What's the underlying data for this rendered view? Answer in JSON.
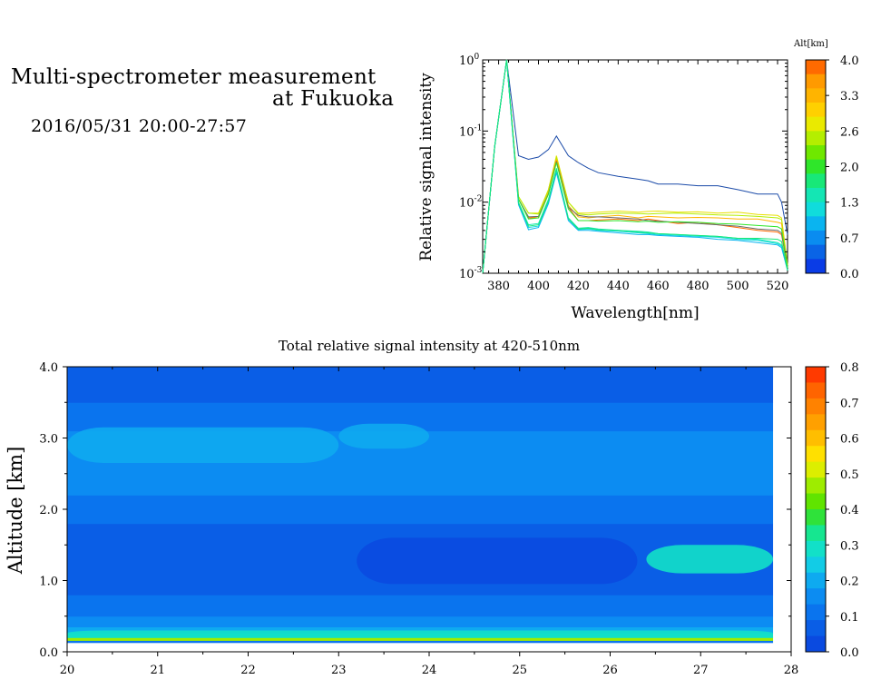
{
  "title": {
    "line1": "Multi-spectrometer measurement",
    "line2": "at Fukuoka",
    "datetime": "2016/05/31 20:00-27:57"
  },
  "chart_data": [
    {
      "type": "line",
      "xlabel": "Wavelength[nm]",
      "ylabel": "Relative signal intensity",
      "yscale": "log",
      "xlim": [
        372,
        525
      ],
      "ylim": [
        0.001,
        1
      ],
      "x_ticks": [
        380,
        400,
        420,
        440,
        460,
        480,
        500,
        520
      ],
      "y_ticks": [
        {
          "value": 0.001,
          "base": "10",
          "exp": "-3"
        },
        {
          "value": 0.01,
          "base": "10",
          "exp": "-2"
        },
        {
          "value": 0.1,
          "base": "10",
          "exp": "-1"
        },
        {
          "value": 1,
          "base": "10",
          "exp": "0"
        }
      ],
      "x": [
        372,
        378,
        384,
        390,
        395,
        400,
        405,
        409,
        415,
        420,
        425,
        430,
        440,
        450,
        455,
        460,
        470,
        480,
        490,
        500,
        510,
        520,
        522,
        525
      ],
      "colorbar": {
        "label": "Alt[km]",
        "ticks": [
          "4.0",
          "3.3",
          "2.6",
          "2.0",
          "1.3",
          "0.7",
          "0.0"
        ],
        "colors": [
          "#ff6a00",
          "#ff9a00",
          "#ffb400",
          "#ffd000",
          "#eaea00",
          "#b4ee00",
          "#6fe800",
          "#2fe62a",
          "#18e878",
          "#14e6b4",
          "#10dcdc",
          "#0ab4f0",
          "#0a8cf0",
          "#0a64e6",
          "#0a3ce6"
        ]
      },
      "series": [
        {
          "color": "#1a4aa8",
          "values": [
            0.001,
            0.06,
            1.0,
            0.045,
            0.04,
            0.043,
            0.055,
            0.085,
            0.045,
            0.036,
            0.03,
            0.026,
            0.023,
            0.021,
            0.02,
            0.018,
            0.018,
            0.017,
            0.017,
            0.015,
            0.013,
            0.013,
            0.01,
            0.0035
          ]
        },
        {
          "color": "#e8e000",
          "values": [
            0.001,
            0.06,
            1.0,
            0.012,
            0.007,
            0.007,
            0.015,
            0.045,
            0.01,
            0.007,
            0.007,
            0.0072,
            0.0075,
            0.0072,
            0.0074,
            0.0075,
            0.0072,
            0.0073,
            0.007,
            0.0072,
            0.0067,
            0.0065,
            0.006,
            0.0013
          ]
        },
        {
          "color": "#b4ee00",
          "values": [
            0.001,
            0.06,
            1.0,
            0.012,
            0.007,
            0.0068,
            0.015,
            0.042,
            0.01,
            0.0068,
            0.0066,
            0.0068,
            0.007,
            0.0069,
            0.0068,
            0.0069,
            0.007,
            0.0068,
            0.0066,
            0.0065,
            0.0063,
            0.006,
            0.0057,
            0.0013
          ]
        },
        {
          "color": "#ffb400",
          "values": [
            0.001,
            0.06,
            1.0,
            0.011,
            0.006,
            0.0063,
            0.014,
            0.04,
            0.009,
            0.0062,
            0.006,
            0.0062,
            0.0065,
            0.006,
            0.0063,
            0.0062,
            0.006,
            0.0061,
            0.006,
            0.0058,
            0.0058,
            0.0052,
            0.005,
            0.0012
          ]
        },
        {
          "color": "#ff6a00",
          "values": [
            0.001,
            0.06,
            1.0,
            0.011,
            0.006,
            0.006,
            0.013,
            0.038,
            0.0085,
            0.0055,
            0.0055,
            0.0056,
            0.0058,
            0.0055,
            0.0058,
            0.0055,
            0.005,
            0.0052,
            0.0048,
            0.0044,
            0.004,
            0.0038,
            0.0035,
            0.0012
          ]
        },
        {
          "color": "#6a6a6a",
          "values": [
            0.001,
            0.06,
            1.0,
            0.011,
            0.0062,
            0.0063,
            0.013,
            0.037,
            0.0085,
            0.0065,
            0.0062,
            0.0062,
            0.006,
            0.0058,
            0.0055,
            0.0054,
            0.0052,
            0.005,
            0.0048,
            0.0046,
            0.0042,
            0.004,
            0.0037,
            0.0012
          ]
        },
        {
          "color": "#2fe62a",
          "values": [
            0.001,
            0.06,
            1.0,
            0.011,
            0.0058,
            0.006,
            0.013,
            0.036,
            0.008,
            0.0055,
            0.0055,
            0.0054,
            0.0055,
            0.0053,
            0.0054,
            0.0052,
            0.0053,
            0.0052,
            0.005,
            0.0049,
            0.0047,
            0.0045,
            0.0042,
            0.0012
          ]
        },
        {
          "color": "#14e6b4",
          "values": [
            0.001,
            0.06,
            1.0,
            0.01,
            0.0048,
            0.005,
            0.011,
            0.03,
            0.006,
            0.0043,
            0.0044,
            0.0042,
            0.004,
            0.0039,
            0.0038,
            0.0036,
            0.0035,
            0.0034,
            0.0033,
            0.0031,
            0.003,
            0.0027,
            0.0025,
            0.0011
          ]
        },
        {
          "color": "#10dcdc",
          "values": [
            0.001,
            0.06,
            1.0,
            0.0095,
            0.0044,
            0.0046,
            0.01,
            0.028,
            0.0058,
            0.0041,
            0.0042,
            0.004,
            0.0039,
            0.0037,
            0.0036,
            0.0035,
            0.0034,
            0.0033,
            0.0032,
            0.003,
            0.0029,
            0.0026,
            0.0024,
            0.0011
          ]
        },
        {
          "color": "#0ab4f0",
          "values": [
            0.001,
            0.06,
            1.0,
            0.0092,
            0.0041,
            0.0044,
            0.0095,
            0.026,
            0.0055,
            0.004,
            0.004,
            0.0039,
            0.0037,
            0.0035,
            0.0035,
            0.0034,
            0.0033,
            0.0032,
            0.003,
            0.0029,
            0.0027,
            0.0025,
            0.0023,
            0.0011
          ]
        },
        {
          "color": "#18e878",
          "values": [
            0.001,
            0.06,
            1.0,
            0.0098,
            0.0046,
            0.0048,
            0.0105,
            0.029,
            0.0059,
            0.0042,
            0.0043,
            0.0041,
            0.004,
            0.0038,
            0.0037,
            0.0036,
            0.0035,
            0.0034,
            0.0033,
            0.0031,
            0.0031,
            0.003,
            0.0028,
            0.0011
          ]
        }
      ]
    },
    {
      "type": "heatmap",
      "title": "Total relative signal intensity at 420-510nm",
      "ylabel": "Altitude [km]",
      "xlim": [
        20,
        28
      ],
      "ylim": [
        0,
        4
      ],
      "x_ticks": [
        "20",
        "21",
        "22",
        "23",
        "24",
        "25",
        "26",
        "27",
        "28"
      ],
      "y_ticks": [
        "0.0",
        "1.0",
        "2.0",
        "3.0",
        "4.0"
      ],
      "data_x_range": [
        20,
        27.8
      ],
      "data_y_range": [
        0.13,
        4.0
      ],
      "colorbar": {
        "ticks": [
          "0.8",
          "0.7",
          "0.6",
          "0.5",
          "0.4",
          "0.3",
          "0.2",
          "0.1",
          "0.0"
        ],
        "range": [
          0,
          0.8
        ],
        "colors": [
          "#ff3a00",
          "#ff6400",
          "#ff8200",
          "#ffa000",
          "#ffbe00",
          "#ffe000",
          "#dcee00",
          "#9eec00",
          "#60e400",
          "#2fe23a",
          "#16e690",
          "#12e0c8",
          "#12cce6",
          "#0eaaf0",
          "#0c8cf2",
          "#0a74ee",
          "#0a5ee6",
          "#0a4ae0"
        ]
      },
      "bands": [
        {
          "alt": [
            0.13,
            0.16
          ],
          "value": 0.12
        },
        {
          "alt": [
            0.16,
            0.2
          ],
          "value": 0.45
        },
        {
          "alt": [
            0.2,
            0.26
          ],
          "value": 0.3
        },
        {
          "alt": [
            0.26,
            0.35
          ],
          "value": 0.2
        },
        {
          "alt": [
            0.35,
            0.5
          ],
          "value": 0.14
        },
        {
          "alt": [
            0.5,
            0.8
          ],
          "value": 0.1
        },
        {
          "alt": [
            0.8,
            1.8
          ],
          "value": 0.05
        },
        {
          "alt": [
            1.8,
            2.2
          ],
          "value": 0.11
        },
        {
          "alt": [
            2.2,
            2.6
          ],
          "value": 0.14
        },
        {
          "alt": [
            2.6,
            3.1
          ],
          "value": 0.17
        },
        {
          "alt": [
            3.1,
            3.5
          ],
          "value": 0.11
        },
        {
          "alt": [
            3.5,
            4.0
          ],
          "value": 0.06
        }
      ],
      "features": [
        {
          "x": [
            20.0,
            23.0
          ],
          "alt": [
            2.65,
            3.15
          ],
          "value": 0.22
        },
        {
          "x": [
            23.0,
            24.0
          ],
          "alt": [
            2.85,
            3.2
          ],
          "value": 0.21
        },
        {
          "x": [
            26.4,
            27.8
          ],
          "alt": [
            1.1,
            1.5
          ],
          "value": 0.28
        },
        {
          "x": [
            23.2,
            26.3
          ],
          "alt": [
            0.95,
            1.6
          ],
          "value": 0.02
        },
        {
          "x": [
            20.0,
            27.8
          ],
          "alt": [
            0.22,
            0.3
          ],
          "value": 0.27
        }
      ]
    }
  ]
}
